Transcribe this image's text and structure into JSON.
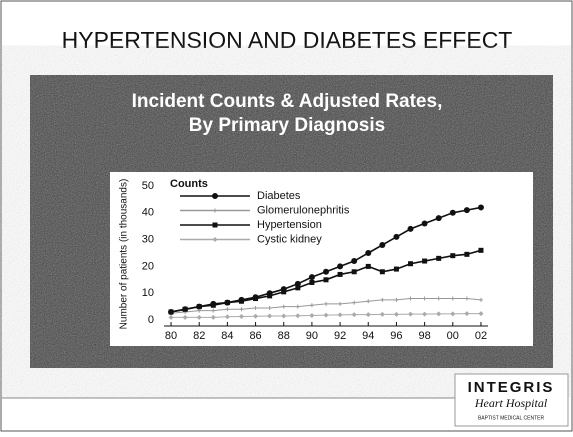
{
  "slide": {
    "title": "HYPERTENSION AND DIABETES EFFECT",
    "subtitle": [
      "Incident Counts & Adjusted Rates,",
      "By Primary Diagnosis"
    ],
    "logo": {
      "name": "INTEGRIS",
      "tagline": "Heart Hospital",
      "subtag": "BAPTIST MEDICAL CENTER"
    }
  },
  "chart_data": {
    "type": "line",
    "title": "Counts",
    "y_label": "Number of patients (in thousands)",
    "x": [
      1980,
      1981,
      1982,
      1983,
      1984,
      1985,
      1986,
      1987,
      1988,
      1989,
      1990,
      1991,
      1992,
      1993,
      1994,
      1995,
      1996,
      1997,
      1998,
      1999,
      2000,
      2001,
      2002
    ],
    "xlim": [
      1979.5,
      2002.5
    ],
    "xticks": [
      {
        "value": 1980,
        "label": "80"
      },
      {
        "value": 1982,
        "label": "82"
      },
      {
        "value": 1984,
        "label": "84"
      },
      {
        "value": 1986,
        "label": "86"
      },
      {
        "value": 1988,
        "label": "88"
      },
      {
        "value": 1990,
        "label": "90"
      },
      {
        "value": 1992,
        "label": "92"
      },
      {
        "value": 1994,
        "label": "94"
      },
      {
        "value": 1996,
        "label": "96"
      },
      {
        "value": 1998,
        "label": "98"
      },
      {
        "value": 2000,
        "label": "00"
      },
      {
        "value": 2002,
        "label": "02"
      }
    ],
    "ylim": [
      0,
      50
    ],
    "yticks": [
      0,
      10,
      20,
      30,
      40,
      50
    ],
    "series": [
      {
        "name": "Diabetes",
        "color": "#111111",
        "marker": "circle",
        "values": [
          3,
          4,
          5,
          6,
          6.5,
          7.5,
          8.5,
          10,
          11.5,
          13.5,
          16,
          18,
          20,
          22,
          25,
          28,
          31,
          34,
          36,
          38,
          40,
          41,
          42
        ]
      },
      {
        "name": "Glomerulonephritis",
        "color": "#999999",
        "marker": "cross",
        "values": [
          2.5,
          3,
          3.5,
          3.5,
          4,
          4,
          4.5,
          4.5,
          5,
          5,
          5.5,
          6,
          6,
          6.5,
          7,
          7.5,
          7.5,
          8,
          8,
          8,
          8,
          8,
          7.5
        ]
      },
      {
        "name": "Hypertension",
        "color": "#111111",
        "marker": "square",
        "values": [
          3,
          4,
          5,
          5.5,
          6.5,
          7,
          8,
          9,
          10.5,
          12,
          14,
          15,
          17,
          18,
          20,
          18,
          19,
          21,
          22,
          23,
          24,
          24.5,
          26
        ]
      },
      {
        "name": "Cystic kidney",
        "color": "#aaaaaa",
        "marker": "diamond",
        "values": [
          1,
          1,
          1,
          1,
          1.2,
          1.3,
          1.4,
          1.5,
          1.5,
          1.6,
          1.7,
          1.8,
          1.9,
          2,
          2,
          2.1,
          2.1,
          2.2,
          2.2,
          2.3,
          2.3,
          2.4,
          2.4
        ]
      }
    ]
  }
}
